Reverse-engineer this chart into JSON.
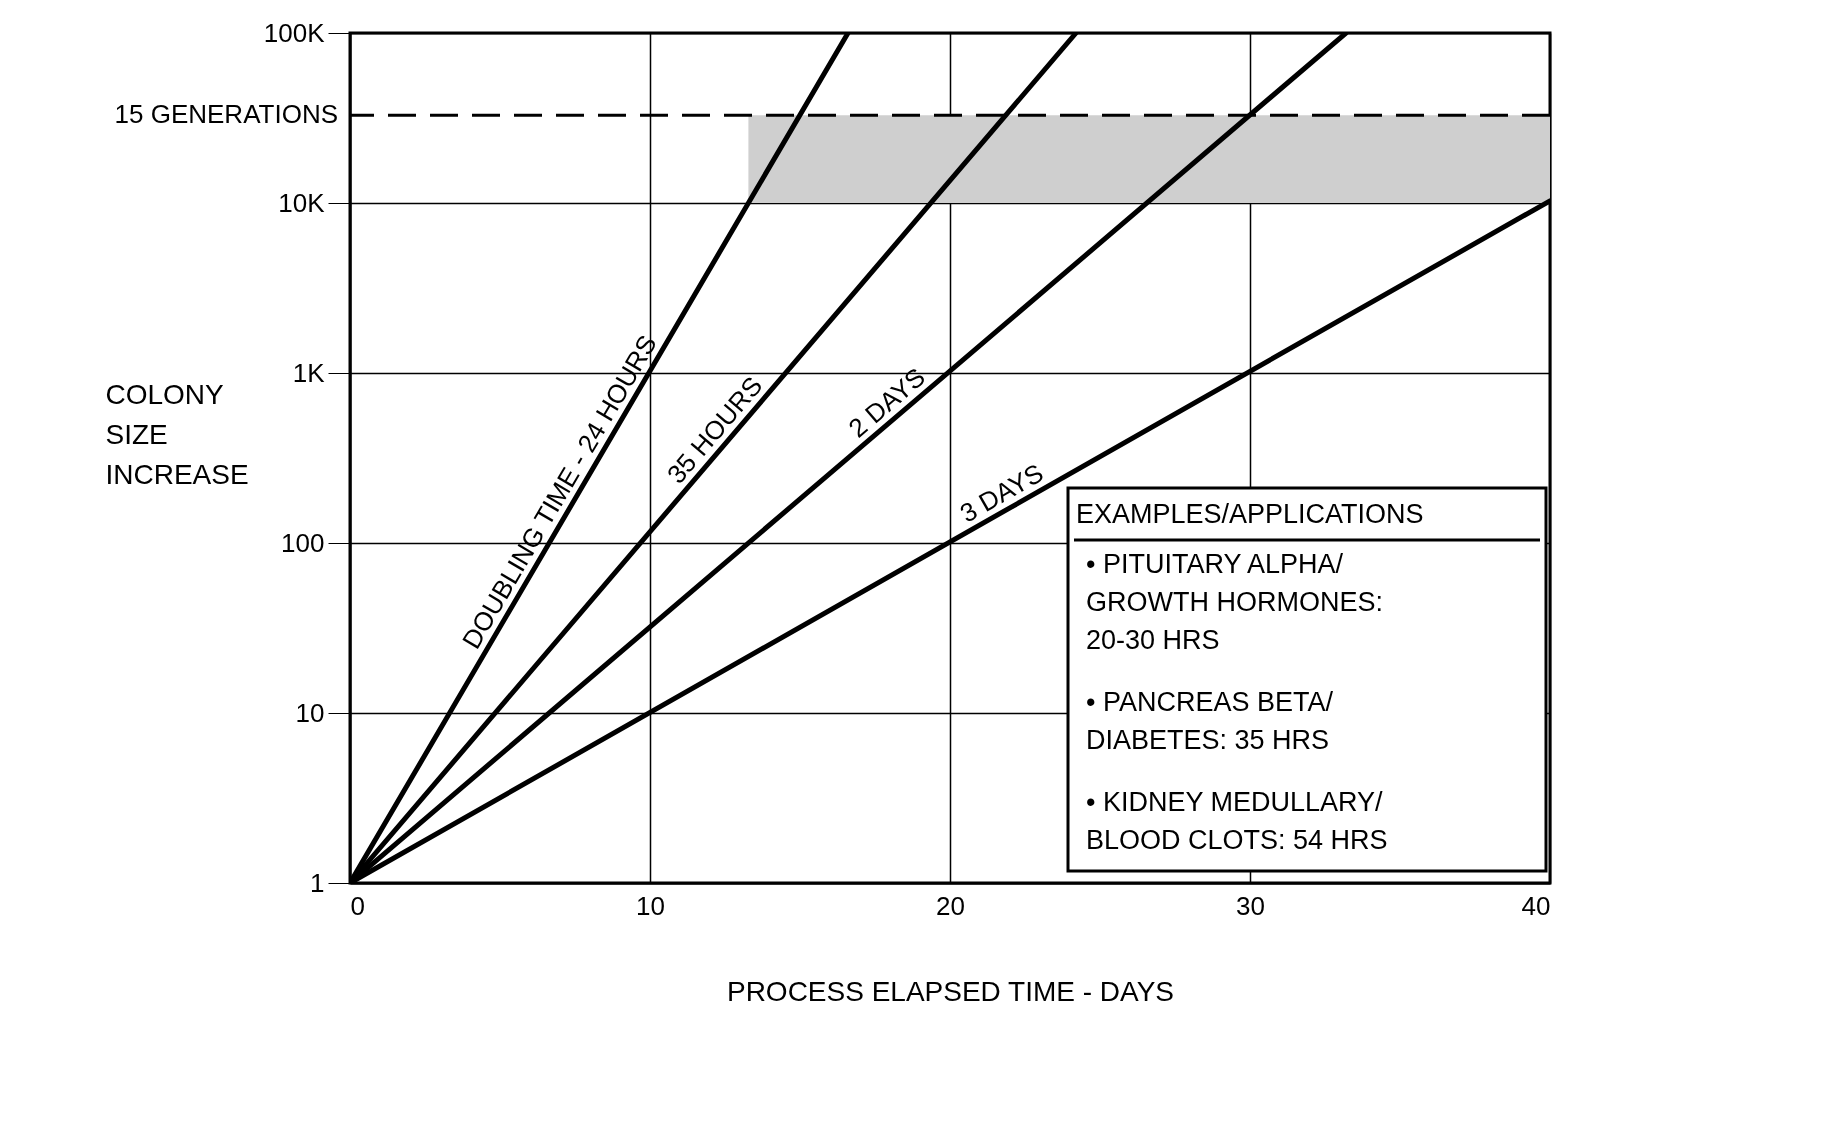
{
  "chart_data": {
    "type": "line",
    "log": "y",
    "xlabel": "PROCESS ELAPSED TIME - DAYS",
    "ylabel": "COLONY SIZE INCREASE",
    "xlim": [
      0,
      40
    ],
    "ylim": [
      1,
      100000
    ],
    "xticks": [
      0,
      10,
      20,
      30,
      40
    ],
    "yticks": [
      1,
      10,
      100,
      {
        "value": 1000,
        "label": "1K"
      },
      {
        "value": 10000,
        "label": "10K"
      },
      {
        "value": 100000,
        "label": "100K"
      }
    ],
    "grid": true,
    "legend": false,
    "line_style": "solid",
    "series": [
      {
        "name": "DOUBLING TIME - 24 HOURS",
        "color": "#000000",
        "x": [
          0,
          16.6
        ],
        "values": [
          1,
          100000
        ]
      },
      {
        "name": "35 HOURS",
        "color": "#000000",
        "x": [
          0,
          24.2
        ],
        "values": [
          1,
          100000
        ]
      },
      {
        "name": "2 DAYS",
        "color": "#000000",
        "x": [
          0,
          33.2
        ],
        "values": [
          1,
          100000
        ]
      },
      {
        "name": "3 DAYS",
        "color": "#000000",
        "x": [
          0,
          40
        ],
        "values": [
          1,
          10300
        ]
      }
    ],
    "ref_lines": [
      {
        "axis": "y",
        "value": 32768,
        "label": "15 GENERATIONS",
        "line_style": "dashed",
        "color": "#000000"
      }
    ],
    "bands": [
      {
        "axis": "y",
        "from": 10000,
        "to": 32768,
        "color": "#cfcfcf"
      }
    ],
    "annotations": [
      "EXAMPLES/APPLICATIONS",
      "• PITUITARY ALPHA/\nGROWTH HORMONES:\n20-30 HRS",
      "• PANCREAS BETA/\nDIABETES: 35 HRS",
      "• KIDNEY MEDULLARY/\nBLOOD CLOTS: 54 HRS"
    ]
  }
}
